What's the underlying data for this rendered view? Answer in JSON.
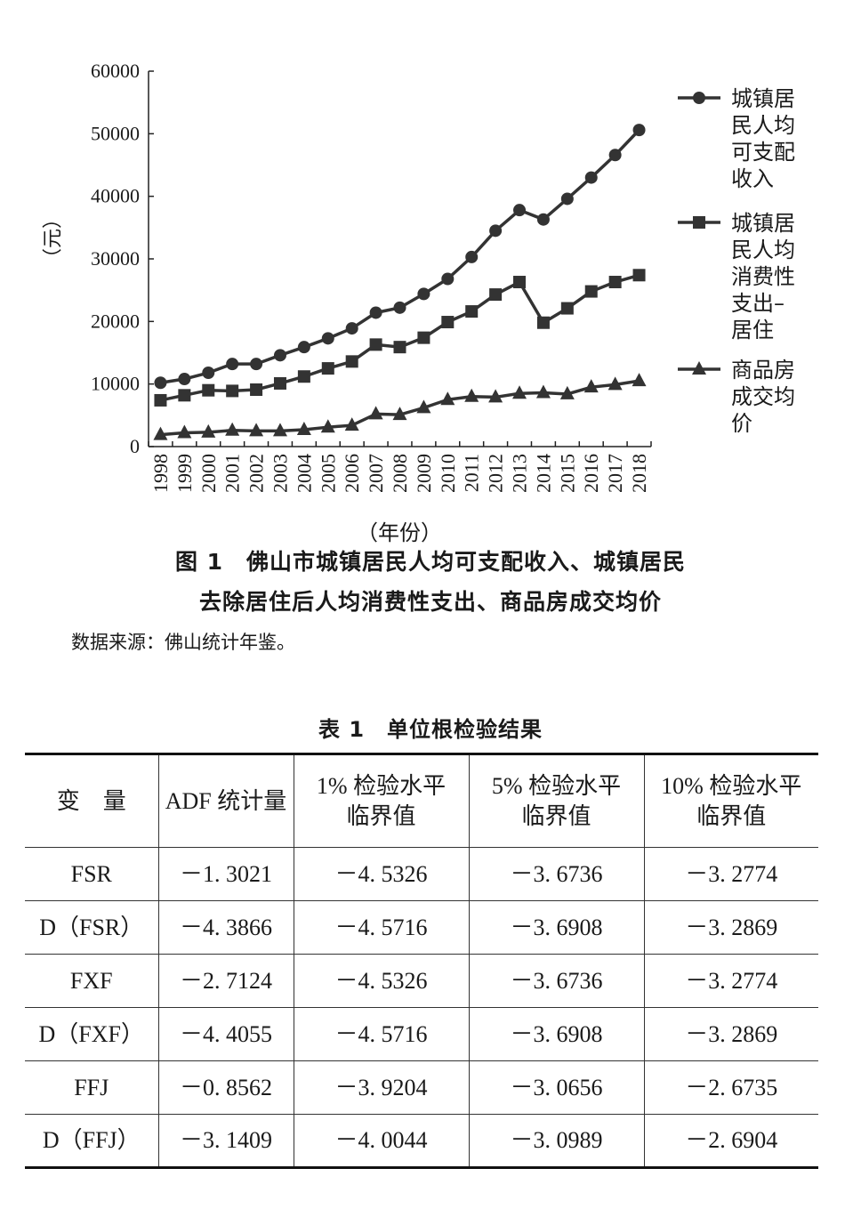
{
  "chart_data": {
    "type": "line",
    "unit_label": "（元）",
    "xlabel": "（年份）",
    "ylim": [
      0,
      60000
    ],
    "yticks": [
      "0",
      "10000",
      "20000",
      "30000",
      "40000",
      "50000",
      "60000"
    ],
    "categories": [
      "1998",
      "1999",
      "2000",
      "2001",
      "2002",
      "2003",
      "2004",
      "2005",
      "2006",
      "2007",
      "2008",
      "2009",
      "2010",
      "2011",
      "2012",
      "2013",
      "2014",
      "2015",
      "2016",
      "2017",
      "2018"
    ],
    "legend_position": "right",
    "series": [
      {
        "name_lines": [
          "城镇居",
          "民人均",
          "可支配",
          "收入"
        ],
        "marker": "circle",
        "values": [
          10200,
          10800,
          11800,
          13200,
          13200,
          14600,
          15900,
          17300,
          18900,
          21400,
          22200,
          24400,
          26800,
          30300,
          34500,
          37800,
          36300,
          39600,
          43000,
          46600,
          50600
        ]
      },
      {
        "name_lines": [
          "城镇居",
          "民人均",
          "消费性",
          "支出–",
          "居住"
        ],
        "marker": "square",
        "values": [
          7400,
          8200,
          9000,
          8900,
          9100,
          10100,
          11200,
          12500,
          13600,
          16300,
          15900,
          17400,
          19900,
          21600,
          24300,
          26300,
          19800,
          22100,
          24800,
          26300,
          27400
        ]
      },
      {
        "name_lines": [
          "商品房",
          "成交均",
          "价"
        ],
        "marker": "triangle",
        "values": [
          1900,
          2200,
          2300,
          2600,
          2500,
          2500,
          2700,
          3100,
          3400,
          5200,
          5100,
          6200,
          7500,
          8000,
          7900,
          8500,
          8600,
          8400,
          9500,
          9900,
          10500
        ]
      }
    ]
  },
  "figure": {
    "caption_line1": "图 1　佛山市城镇居民人均可支配收入、城镇居民",
    "caption_line2": "去除居住后人均消费性支出、商品房成交均价",
    "source": "数据来源：佛山统计年鉴。"
  },
  "table": {
    "title": "表 1　单位根检验结果",
    "headers": [
      [
        "变　量"
      ],
      [
        "ADF 统计量"
      ],
      [
        "1% 检验水平",
        "临界值"
      ],
      [
        "5% 检验水平",
        "临界值"
      ],
      [
        "10% 检验水平",
        "临界值"
      ]
    ],
    "rows": [
      [
        "FSR",
        "－1. 3021",
        "－4. 5326",
        "－3. 6736",
        "－3. 2774"
      ],
      [
        "D（FSR）",
        "－4. 3866",
        "－4. 5716",
        "－3. 6908",
        "－3. 2869"
      ],
      [
        "FXF",
        "－2. 7124",
        "－4. 5326",
        "－3. 6736",
        "－3. 2774"
      ],
      [
        "D（FXF）",
        "－4. 4055",
        "－4. 5716",
        "－3. 6908",
        "－3. 2869"
      ],
      [
        "FFJ",
        "－0. 8562",
        "－3. 9204",
        "－3. 0656",
        "－2. 6735"
      ],
      [
        "D（FFJ）",
        "－3. 1409",
        "－4. 0044",
        "－3. 0989",
        "－2. 6904"
      ]
    ]
  }
}
